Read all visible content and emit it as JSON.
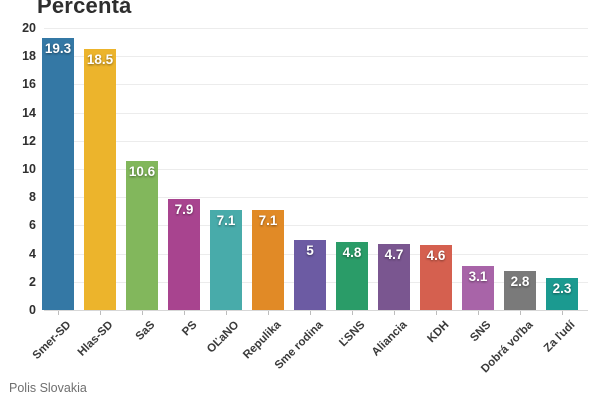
{
  "header": {
    "title": "Percentá"
  },
  "footer": {
    "source": "Polis Slovakia"
  },
  "chart_data": {
    "type": "bar",
    "title": "Percentá",
    "xlabel": "",
    "ylabel": "",
    "ylim": [
      0,
      20
    ],
    "yticks": [
      0,
      2,
      4,
      6,
      8,
      10,
      12,
      14,
      16,
      18,
      20
    ],
    "grid": true,
    "legend": false,
    "categories": [
      "Smer-SD",
      "Hlas-SD",
      "SaS",
      "PS",
      "OĽaNO",
      "Repulika",
      "Sme rodina",
      "ĽSNS",
      "Aliancia",
      "KDH",
      "SNS",
      "Dobrá voľba",
      "Za ľudí"
    ],
    "values": [
      19.3,
      18.5,
      10.6,
      7.9,
      7.1,
      7.1,
      5,
      4.8,
      4.7,
      4.6,
      3.1,
      2.8,
      2.3
    ],
    "value_labels": [
      "19.3",
      "18.5",
      "10.6",
      "7.9",
      "7.1",
      "7.1",
      "5",
      "4.8",
      "4.7",
      "4.6",
      "3.1",
      "2.8",
      "2.3"
    ],
    "bar_colors": [
      "#3478a5",
      "#ecb42c",
      "#82b75c",
      "#a8448f",
      "#48abaa",
      "#e18a26",
      "#6c5ba3",
      "#2a9c68",
      "#7a5690",
      "#d5604f",
      "#a864a8",
      "#7a7a7a",
      "#1b9a90"
    ],
    "grid_color": "#ececec",
    "axis_line_color": "#d7d7d7",
    "value_label_color": "#ffffff"
  }
}
